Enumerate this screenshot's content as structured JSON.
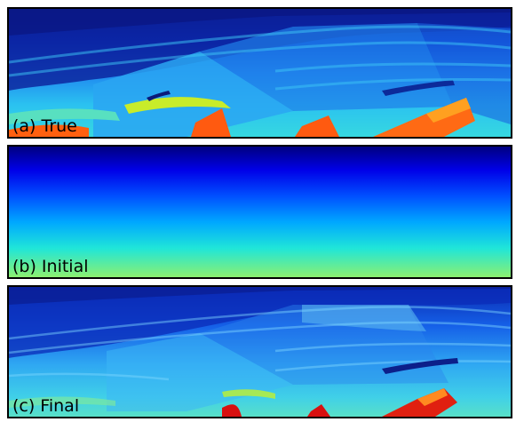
{
  "panels": [
    {
      "label": "(a) True",
      "model": "true"
    },
    {
      "label": "(b) Initial",
      "model": "initial"
    },
    {
      "label": "(c) Final",
      "model": "final"
    }
  ],
  "colormap": [
    "#00007f",
    "#0000ff",
    "#007fff",
    "#00ffff",
    "#7fff7f",
    "#ffff00",
    "#ff7f00",
    "#ff0000",
    "#7f0000"
  ]
}
